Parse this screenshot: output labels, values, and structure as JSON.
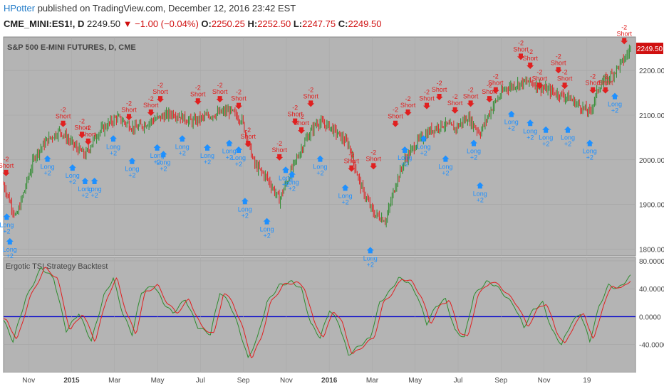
{
  "header": {
    "author": "HPotter",
    "published_text": "published on TradingView.com, December 12, 2016 23:42 EST",
    "symbol": "CME_MINI:ES1!, D",
    "price": "2249.50",
    "change_arrow": "▼",
    "change": "−1.00 (−0.04%)",
    "ohlc": [
      {
        "label": "O:",
        "value": "2250.25"
      },
      {
        "label": "H:",
        "value": "2252.50"
      },
      {
        "label": "L:",
        "value": "2247.75"
      },
      {
        "label": "C:",
        "value": "2249.50"
      }
    ]
  },
  "colors": {
    "background": "#b4b4b4",
    "up": "#2e8b2e",
    "down": "#e02020",
    "buy": "#1e90ff",
    "sell": "#e02020",
    "zero_line": "#0000cc",
    "tsi": "#2e8b2e",
    "signal": "#e02020"
  },
  "chart_data": [
    {
      "type": "candlestick",
      "title": "S&P 500 E-MINI FUTURES, D, CME",
      "last_price_label": "2249.50",
      "y_ticks": [
        "2200.00",
        "2100.00",
        "2000.00",
        "1900.00",
        "1800.00"
      ],
      "ylim": [
        1785,
        2275
      ],
      "x_labels": [
        "Nov",
        "2015",
        "Mar",
        "May",
        "Jul",
        "Sep",
        "Nov",
        "2016",
        "Mar",
        "May",
        "Jul",
        "Sep",
        "Nov",
        "19"
      ],
      "trend": [
        {
          "t": 0,
          "v": 1945
        },
        {
          "t": 0.02,
          "v": 1870
        },
        {
          "t": 0.05,
          "v": 2010
        },
        {
          "t": 0.07,
          "v": 2045
        },
        {
          "t": 0.09,
          "v": 2065
        },
        {
          "t": 0.11,
          "v": 2035
        },
        {
          "t": 0.13,
          "v": 2010
        },
        {
          "t": 0.15,
          "v": 2060
        },
        {
          "t": 0.18,
          "v": 2095
        },
        {
          "t": 0.21,
          "v": 2070
        },
        {
          "t": 0.24,
          "v": 2090
        },
        {
          "t": 0.27,
          "v": 2105
        },
        {
          "t": 0.3,
          "v": 2085
        },
        {
          "t": 0.33,
          "v": 2100
        },
        {
          "t": 0.36,
          "v": 2110
        },
        {
          "t": 0.38,
          "v": 2090
        },
        {
          "t": 0.4,
          "v": 1990
        },
        {
          "t": 0.42,
          "v": 1960
        },
        {
          "t": 0.44,
          "v": 1910
        },
        {
          "t": 0.46,
          "v": 1980
        },
        {
          "t": 0.48,
          "v": 2040
        },
        {
          "t": 0.5,
          "v": 2085
        },
        {
          "t": 0.52,
          "v": 2075
        },
        {
          "t": 0.55,
          "v": 2035
        },
        {
          "t": 0.57,
          "v": 1940
        },
        {
          "t": 0.59,
          "v": 1880
        },
        {
          "t": 0.61,
          "v": 1865
        },
        {
          "t": 0.625,
          "v": 1945
        },
        {
          "t": 0.64,
          "v": 2000
        },
        {
          "t": 0.66,
          "v": 2040
        },
        {
          "t": 0.68,
          "v": 2065
        },
        {
          "t": 0.7,
          "v": 2080
        },
        {
          "t": 0.72,
          "v": 2070
        },
        {
          "t": 0.74,
          "v": 2095
        },
        {
          "t": 0.76,
          "v": 2060
        },
        {
          "t": 0.78,
          "v": 2120
        },
        {
          "t": 0.8,
          "v": 2160
        },
        {
          "t": 0.82,
          "v": 2170
        },
        {
          "t": 0.84,
          "v": 2175
        },
        {
          "t": 0.86,
          "v": 2160
        },
        {
          "t": 0.88,
          "v": 2150
        },
        {
          "t": 0.9,
          "v": 2140
        },
        {
          "t": 0.92,
          "v": 2120
        },
        {
          "t": 0.935,
          "v": 2105
        },
        {
          "t": 0.95,
          "v": 2165
        },
        {
          "t": 0.97,
          "v": 2190
        },
        {
          "t": 0.99,
          "v": 2225
        },
        {
          "t": 1,
          "v": 2249.5
        }
      ],
      "signals": [
        {
          "t": 0.004,
          "side": "short",
          "v": 1965
        },
        {
          "t": 0.005,
          "side": "long",
          "v": 1880
        },
        {
          "t": 0.01,
          "side": "long",
          "v": 1825
        },
        {
          "t": 0.07,
          "side": "long",
          "v": 2010
        },
        {
          "t": 0.095,
          "side": "short",
          "v": 2075
        },
        {
          "t": 0.11,
          "side": "long",
          "v": 1990
        },
        {
          "t": 0.125,
          "side": "short",
          "v": 2050
        },
        {
          "t": 0.135,
          "side": "short",
          "v": 2035
        },
        {
          "t": 0.13,
          "side": "long",
          "v": 1960
        },
        {
          "t": 0.145,
          "side": "long",
          "v": 1960
        },
        {
          "t": 0.175,
          "side": "long",
          "v": 2055
        },
        {
          "t": 0.2,
          "side": "short",
          "v": 2090
        },
        {
          "t": 0.205,
          "side": "long",
          "v": 2005
        },
        {
          "t": 0.235,
          "side": "short",
          "v": 2100
        },
        {
          "t": 0.245,
          "side": "long",
          "v": 2035
        },
        {
          "t": 0.25,
          "side": "short",
          "v": 2130
        },
        {
          "t": 0.255,
          "side": "long",
          "v": 2020
        },
        {
          "t": 0.285,
          "side": "long",
          "v": 2055
        },
        {
          "t": 0.31,
          "side": "short",
          "v": 2125
        },
        {
          "t": 0.325,
          "side": "long",
          "v": 2035
        },
        {
          "t": 0.345,
          "side": "short",
          "v": 2130
        },
        {
          "t": 0.36,
          "side": "long",
          "v": 2045
        },
        {
          "t": 0.375,
          "side": "short",
          "v": 2115
        },
        {
          "t": 0.375,
          "side": "long",
          "v": 2030
        },
        {
          "t": 0.39,
          "side": "short",
          "v": 2030
        },
        {
          "t": 0.385,
          "side": "long",
          "v": 1915
        },
        {
          "t": 0.42,
          "side": "long",
          "v": 1870
        },
        {
          "t": 0.44,
          "side": "short",
          "v": 2000
        },
        {
          "t": 0.45,
          "side": "long",
          "v": 1985
        },
        {
          "t": 0.46,
          "side": "long",
          "v": 1975
        },
        {
          "t": 0.465,
          "side": "short",
          "v": 2080
        },
        {
          "t": 0.475,
          "side": "short",
          "v": 2060
        },
        {
          "t": 0.49,
          "side": "short",
          "v": 2120
        },
        {
          "t": 0.505,
          "side": "long",
          "v": 2010
        },
        {
          "t": 0.545,
          "side": "long",
          "v": 1945
        },
        {
          "t": 0.555,
          "side": "short",
          "v": 1975
        },
        {
          "t": 0.59,
          "side": "short",
          "v": 1980
        },
        {
          "t": 0.585,
          "side": "long",
          "v": 1805
        },
        {
          "t": 0.625,
          "side": "short",
          "v": 2075
        },
        {
          "t": 0.64,
          "side": "long",
          "v": 2030
        },
        {
          "t": 0.645,
          "side": "short",
          "v": 2100
        },
        {
          "t": 0.67,
          "side": "long",
          "v": 2055
        },
        {
          "t": 0.675,
          "side": "short",
          "v": 2115
        },
        {
          "t": 0.695,
          "side": "short",
          "v": 2135
        },
        {
          "t": 0.705,
          "side": "long",
          "v": 2010
        },
        {
          "t": 0.72,
          "side": "short",
          "v": 2105
        },
        {
          "t": 0.745,
          "side": "short",
          "v": 2120
        },
        {
          "t": 0.75,
          "side": "long",
          "v": 2045
        },
        {
          "t": 0.76,
          "side": "long",
          "v": 1950
        },
        {
          "t": 0.775,
          "side": "short",
          "v": 2130
        },
        {
          "t": 0.785,
          "side": "short",
          "v": 2150
        },
        {
          "t": 0.81,
          "side": "long",
          "v": 2110
        },
        {
          "t": 0.825,
          "side": "short",
          "v": 2225
        },
        {
          "t": 0.84,
          "side": "short",
          "v": 2205
        },
        {
          "t": 0.84,
          "side": "long",
          "v": 2090
        },
        {
          "t": 0.855,
          "side": "short",
          "v": 2160
        },
        {
          "t": 0.865,
          "side": "long",
          "v": 2075
        },
        {
          "t": 0.885,
          "side": "short",
          "v": 2195
        },
        {
          "t": 0.895,
          "side": "short",
          "v": 2160
        },
        {
          "t": 0.9,
          "side": "long",
          "v": 2075
        },
        {
          "t": 0.935,
          "side": "long",
          "v": 2045
        },
        {
          "t": 0.94,
          "side": "short",
          "v": 2150
        },
        {
          "t": 0.96,
          "side": "short",
          "v": 2150
        },
        {
          "t": 0.975,
          "side": "long",
          "v": 2150
        },
        {
          "t": 0.99,
          "side": "short",
          "v": 2260
        }
      ],
      "labels": {
        "short_top": "-2",
        "short_bottom": "Short",
        "long_top": "Long",
        "long_bottom": "+2"
      }
    },
    {
      "type": "line",
      "title": "Ergotic TSI Strategy Backtest",
      "y_ticks": [
        "80.0000",
        "40.0000",
        "0.0000",
        "-40.0000"
      ],
      "ylim": [
        -80,
        85
      ],
      "series_points": [
        {
          "t": 0,
          "v": -5
        },
        {
          "t": 0.015,
          "v": -35
        },
        {
          "t": 0.035,
          "v": 25
        },
        {
          "t": 0.06,
          "v": 70
        },
        {
          "t": 0.08,
          "v": 55
        },
        {
          "t": 0.1,
          "v": -20
        },
        {
          "t": 0.12,
          "v": 5
        },
        {
          "t": 0.14,
          "v": -35
        },
        {
          "t": 0.16,
          "v": 30
        },
        {
          "t": 0.175,
          "v": 55
        },
        {
          "t": 0.19,
          "v": 5
        },
        {
          "t": 0.205,
          "v": -25
        },
        {
          "t": 0.22,
          "v": 35
        },
        {
          "t": 0.24,
          "v": 45
        },
        {
          "t": 0.255,
          "v": 20
        },
        {
          "t": 0.27,
          "v": 5
        },
        {
          "t": 0.29,
          "v": 25
        },
        {
          "t": 0.31,
          "v": -15
        },
        {
          "t": 0.33,
          "v": -25
        },
        {
          "t": 0.345,
          "v": 35
        },
        {
          "t": 0.36,
          "v": 20
        },
        {
          "t": 0.375,
          "v": -15
        },
        {
          "t": 0.39,
          "v": -60
        },
        {
          "t": 0.405,
          "v": -30
        },
        {
          "t": 0.42,
          "v": 20
        },
        {
          "t": 0.44,
          "v": 45
        },
        {
          "t": 0.46,
          "v": 50
        },
        {
          "t": 0.475,
          "v": 40
        },
        {
          "t": 0.49,
          "v": -10
        },
        {
          "t": 0.505,
          "v": -30
        },
        {
          "t": 0.52,
          "v": 10
        },
        {
          "t": 0.535,
          "v": -10
        },
        {
          "t": 0.55,
          "v": -55
        },
        {
          "t": 0.57,
          "v": -40
        },
        {
          "t": 0.585,
          "v": -30
        },
        {
          "t": 0.6,
          "v": 20
        },
        {
          "t": 0.615,
          "v": 35
        },
        {
          "t": 0.63,
          "v": 55
        },
        {
          "t": 0.645,
          "v": 50
        },
        {
          "t": 0.66,
          "v": 30
        },
        {
          "t": 0.675,
          "v": -10
        },
        {
          "t": 0.69,
          "v": 15
        },
        {
          "t": 0.705,
          "v": 25
        },
        {
          "t": 0.72,
          "v": -20
        },
        {
          "t": 0.735,
          "v": -30
        },
        {
          "t": 0.75,
          "v": 30
        },
        {
          "t": 0.77,
          "v": 50
        },
        {
          "t": 0.785,
          "v": 45
        },
        {
          "t": 0.8,
          "v": 30
        },
        {
          "t": 0.815,
          "v": 15
        },
        {
          "t": 0.83,
          "v": -15
        },
        {
          "t": 0.845,
          "v": 10
        },
        {
          "t": 0.86,
          "v": 20
        },
        {
          "t": 0.875,
          "v": -20
        },
        {
          "t": 0.89,
          "v": -40
        },
        {
          "t": 0.905,
          "v": -10
        },
        {
          "t": 0.92,
          "v": 5
        },
        {
          "t": 0.935,
          "v": -35
        },
        {
          "t": 0.95,
          "v": 15
        },
        {
          "t": 0.965,
          "v": 45
        },
        {
          "t": 0.98,
          "v": 40
        },
        {
          "t": 1,
          "v": 58
        }
      ]
    }
  ]
}
